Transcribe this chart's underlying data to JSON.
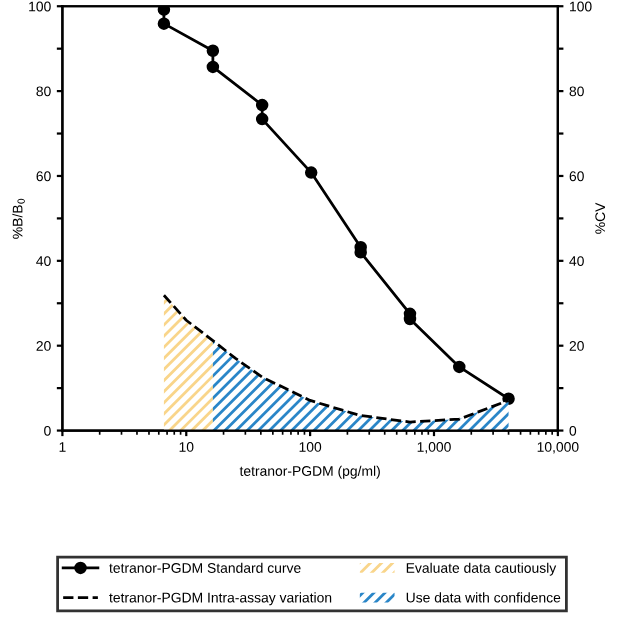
{
  "chart_data": {
    "type": "line",
    "xlabel": "tetranor-PGDM (pg/ml)",
    "ylabel": "%B/B$_{0}$",
    "y2label": "%CV",
    "log": "x",
    "xlim": [
      1,
      10000
    ],
    "xticks": [
      1,
      10,
      100,
      {
        "value": 1000,
        "label": "1,000"
      },
      {
        "value": 10000,
        "label": "10,000"
      }
    ],
    "ylim": [
      0,
      100
    ],
    "yticks": [
      0,
      {
        "value": 10,
        "label": null
      },
      20,
      {
        "value": 30,
        "label": null
      },
      40,
      {
        "value": 50,
        "label": null
      },
      60,
      {
        "value": 70,
        "label": null
      },
      80,
      {
        "value": 90,
        "label": null
      },
      100
    ],
    "y2lim": [
      0,
      100
    ],
    "y2ticks": [
      0,
      {
        "value": 10,
        "label": null
      },
      20,
      {
        "value": 30,
        "label": null
      },
      40,
      {
        "value": 50,
        "label": null
      },
      60,
      {
        "value": 70,
        "label": null
      },
      80,
      {
        "value": 90,
        "label": null
      },
      100
    ],
    "legend": "bottom",
    "grid": false,
    "series": [
      {
        "name": "Evaluate data cautiously",
        "type": "area",
        "axis": "y2",
        "color": "#f9d58a",
        "x": [
          6.6,
          10,
          16.4
        ],
        "values": [
          31.9,
          26,
          21.2
        ]
      },
      {
        "name": "Use data with confidence",
        "type": "area",
        "axis": "y2",
        "color": "#2a86c8",
        "x": [
          16.4,
          25,
          41,
          100,
          250,
          640,
          1600,
          4000
        ],
        "values": [
          21.2,
          17,
          12.6,
          7.1,
          3.6,
          2.0,
          2.7,
          7.1
        ]
      },
      {
        "name": "tetranor-PGDM Standard curve",
        "marker": "circle",
        "line_style": "solid",
        "color": "#000000",
        "x": [
          6.6,
          6.6,
          16.4,
          16.4,
          41,
          41,
          102,
          256,
          256,
          640,
          640,
          1600,
          4000
        ],
        "values": [
          99.2,
          95.9,
          89.5,
          85.7,
          76.7,
          73.4,
          60.8,
          43.2,
          42.0,
          27.5,
          26.3,
          15.0,
          7.5
        ]
      },
      {
        "name": "tetranor-PGDM Intra-assay variation",
        "marker": "none",
        "line_style": "dashed",
        "axis": "y2",
        "color": "#000000",
        "x": [
          6.6,
          10,
          16.4,
          25,
          41,
          100,
          250,
          640,
          1600,
          4000
        ],
        "values": [
          31.9,
          26,
          21.2,
          17,
          12.6,
          7.1,
          3.6,
          2.0,
          2.7,
          7.1
        ]
      }
    ]
  }
}
